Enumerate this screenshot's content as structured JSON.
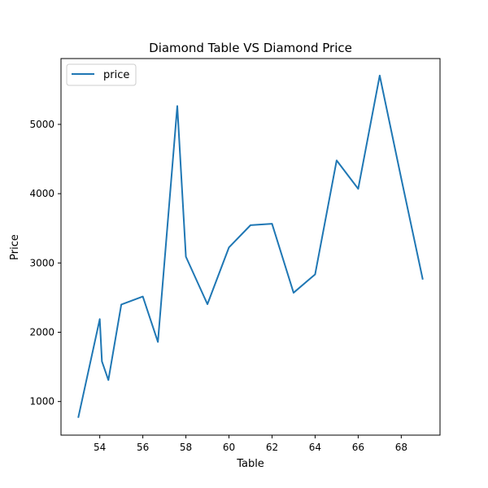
{
  "chart_data": {
    "type": "line",
    "title": "Diamond Table VS Diamond Price",
    "xlabel": "Table",
    "ylabel": "Price",
    "xlim": [
      52.2,
      69.8
    ],
    "ylim": [
      515,
      5950
    ],
    "xticks": [
      54,
      56,
      58,
      60,
      62,
      64,
      66,
      68
    ],
    "yticks": [
      1000,
      2000,
      3000,
      4000,
      5000
    ],
    "grid": false,
    "legend_position": "upper left",
    "series": [
      {
        "name": "price",
        "color": "#1f77b4",
        "x": [
          53.0,
          54.0,
          54.1,
          54.4,
          55.0,
          56.0,
          56.7,
          57.6,
          58.0,
          59.0,
          60.0,
          61.0,
          62.0,
          63.0,
          64.0,
          65.0,
          66.0,
          67.0,
          68.0,
          69.0
        ],
        "y": [
          765,
          2190,
          1580,
          1310,
          2400,
          2515,
          1860,
          5265,
          3090,
          2405,
          3225,
          3545,
          3565,
          2570,
          2835,
          4480,
          4070,
          5705,
          4220,
          2760
        ]
      }
    ]
  }
}
